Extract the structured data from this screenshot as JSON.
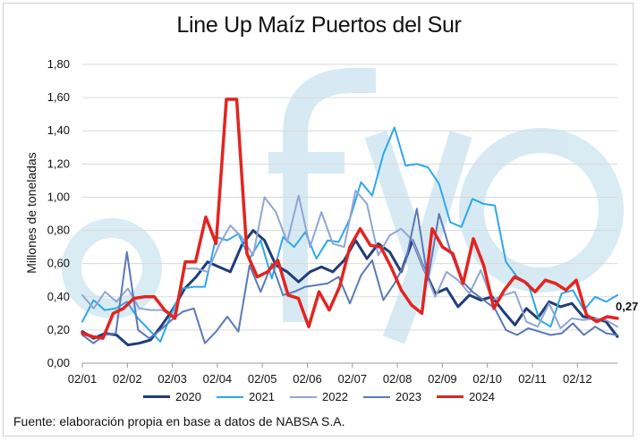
{
  "chart_data": {
    "type": "line",
    "title": "Line Up Maíz Puertos del Sur",
    "ylabel": "Millones de toneladas",
    "xlabel": "",
    "ylim": [
      0,
      1.8
    ],
    "yticks": [
      "0,00",
      "0,20",
      "0,40",
      "0,60",
      "0,80",
      "1,00",
      "1,20",
      "1,40",
      "1,60",
      "1,80"
    ],
    "xticks": [
      "02/01",
      "02/02",
      "02/03",
      "02/04",
      "02/05",
      "02/06",
      "02/07",
      "02/08",
      "02/09",
      "02/10",
      "02/11",
      "02/12"
    ],
    "grid": true,
    "legend_position": "bottom",
    "annotation": "0,27",
    "series": [
      {
        "name": "2020",
        "color": "#1f3d7a",
        "width": 3,
        "values": [
          0.19,
          0.15,
          0.18,
          0.17,
          0.11,
          0.12,
          0.14,
          0.23,
          0.33,
          0.45,
          0.52,
          0.61,
          0.58,
          0.55,
          0.71,
          0.8,
          0.74,
          0.59,
          0.55,
          0.49,
          0.55,
          0.58,
          0.55,
          0.62,
          0.74,
          0.63,
          0.72,
          0.67,
          0.55,
          0.74,
          0.57,
          0.42,
          0.45,
          0.34,
          0.41,
          0.38,
          0.4,
          0.31,
          0.23,
          0.33,
          0.27,
          0.37,
          0.34,
          0.36,
          0.28,
          0.27,
          0.25,
          0.16
        ]
      },
      {
        "name": "2021",
        "color": "#2ea7ec",
        "width": 2,
        "values": [
          0.25,
          0.38,
          0.32,
          0.33,
          0.37,
          0.27,
          0.2,
          0.13,
          0.3,
          0.45,
          0.46,
          0.46,
          0.76,
          0.74,
          0.78,
          0.63,
          0.74,
          0.51,
          0.76,
          0.7,
          0.79,
          0.63,
          0.74,
          0.73,
          0.87,
          1.09,
          1.01,
          1.26,
          1.42,
          1.19,
          1.2,
          1.18,
          1.08,
          0.85,
          0.82,
          0.99,
          0.96,
          0.95,
          0.61,
          0.52,
          0.48,
          0.26,
          0.22,
          0.42,
          0.44,
          0.32,
          0.4,
          0.37,
          0.41
        ]
      },
      {
        "name": "2022",
        "color": "#8fa6d6",
        "width": 2,
        "values": [
          0.41,
          0.33,
          0.43,
          0.37,
          0.45,
          0.33,
          0.32,
          0.32,
          0.28,
          0.57,
          0.57,
          0.55,
          0.71,
          0.83,
          0.76,
          0.65,
          1.0,
          0.91,
          0.73,
          1.01,
          0.7,
          0.91,
          0.72,
          0.7,
          1.04,
          0.96,
          0.65,
          0.77,
          0.81,
          0.74,
          0.57,
          0.4,
          0.55,
          0.5,
          0.42,
          0.56,
          0.38,
          0.41,
          0.43,
          0.25,
          0.22,
          0.36,
          0.21,
          0.27,
          0.26,
          0.27,
          0.26,
          0.22
        ]
      },
      {
        "name": "2023",
        "color": "#5b79b8",
        "width": 2,
        "values": [
          0.17,
          0.12,
          0.17,
          0.18,
          0.67,
          0.2,
          0.15,
          0.2,
          0.26,
          0.31,
          0.33,
          0.12,
          0.19,
          0.28,
          0.19,
          0.59,
          0.43,
          0.6,
          0.41,
          0.43,
          0.46,
          0.47,
          0.48,
          0.52,
          0.36,
          0.53,
          0.62,
          0.38,
          0.48,
          0.61,
          0.93,
          0.5,
          0.9,
          0.68,
          0.5,
          0.43,
          0.38,
          0.33,
          0.2,
          0.17,
          0.21,
          0.19,
          0.17,
          0.18,
          0.24,
          0.17,
          0.22,
          0.18,
          0.17
        ]
      },
      {
        "name": "2024",
        "color": "#e32420",
        "width": 3.5,
        "values": [
          0.18,
          0.16,
          0.15,
          0.3,
          0.33,
          0.39,
          0.4,
          0.4,
          0.32,
          0.27,
          0.61,
          0.61,
          0.88,
          0.72,
          1.59,
          1.59,
          0.66,
          0.52,
          0.55,
          0.62,
          0.41,
          0.39,
          0.22,
          0.43,
          0.32,
          0.46,
          0.7,
          0.81,
          0.71,
          0.7,
          0.58,
          0.44,
          0.35,
          0.3,
          0.81,
          0.7,
          0.66,
          0.48,
          0.75,
          0.59,
          0.33,
          0.44,
          0.52,
          0.49,
          0.43,
          0.5,
          0.48,
          0.44,
          0.5,
          0.29,
          0.25,
          0.28,
          0.27
        ]
      }
    ]
  },
  "source": "Fuente: elaboración propia en base a datos de NABSA S.A."
}
